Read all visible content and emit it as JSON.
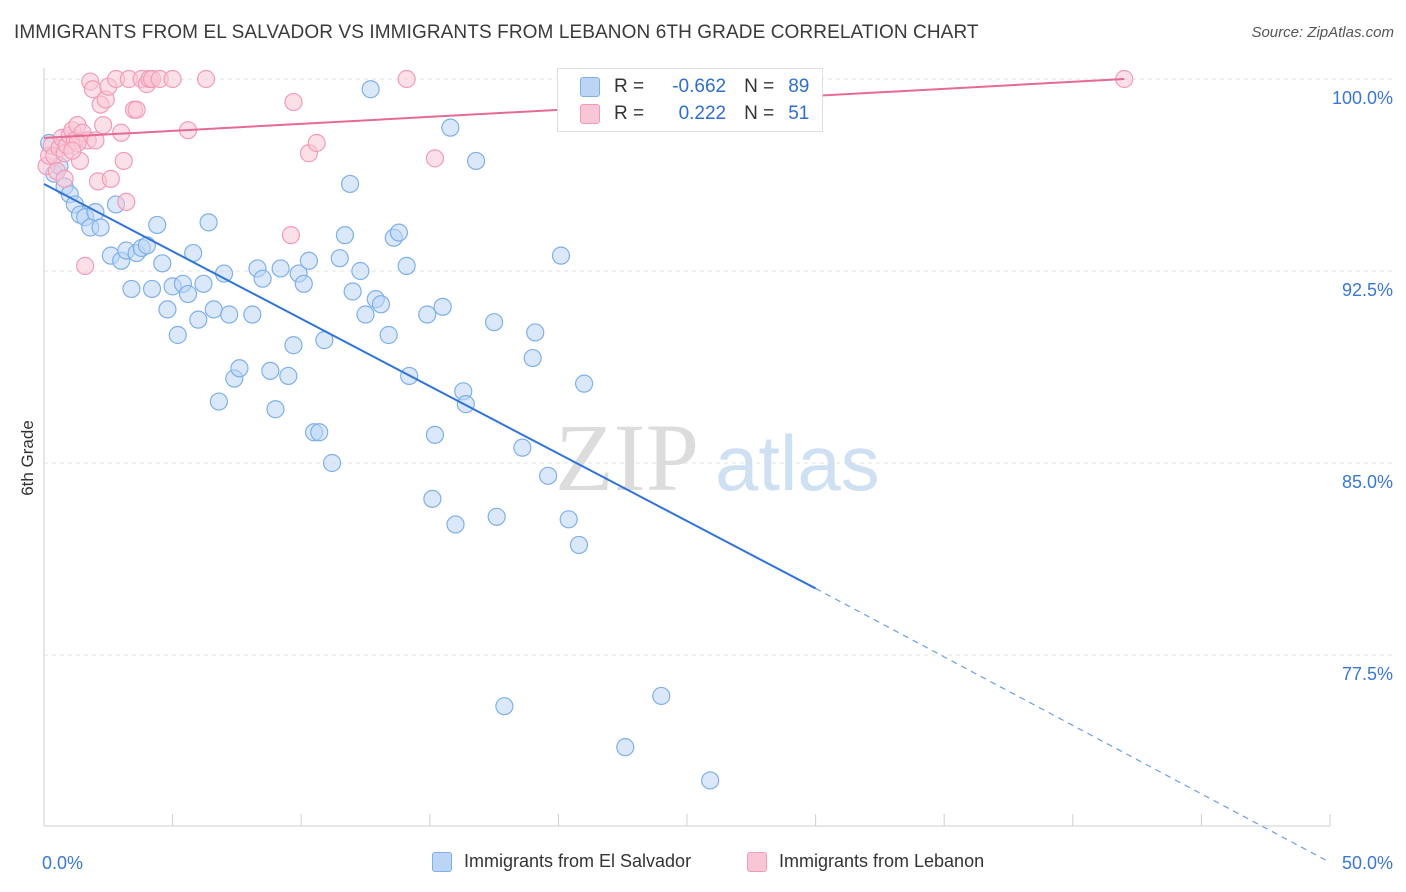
{
  "title": "IMMIGRANTS FROM EL SALVADOR VS IMMIGRANTS FROM LEBANON 6TH GRADE CORRELATION CHART",
  "source": "Source: ZipAtlas.com",
  "watermark": {
    "zip": "ZIP",
    "atlas": "atlas"
  },
  "legend": {
    "rows": [
      {
        "r_label": "R =",
        "r_value": "-0.662",
        "n_label": "N =",
        "n_value": "89",
        "color": "#7fb0e8",
        "fill": "#bcd5f5"
      },
      {
        "r_label": "R =",
        "r_value": "0.222",
        "n_label": "N =",
        "n_value": "51",
        "color": "#f29bb8",
        "fill": "#f9c6d6"
      }
    ]
  },
  "bottom_legend": [
    {
      "label": "Immigrants from El Salvador",
      "color": "#7fb0e8",
      "fill": "#bcd5f5"
    },
    {
      "label": "Immigrants from Lebanon",
      "color": "#f29bb8",
      "fill": "#f9c6d6"
    }
  ],
  "chart_data": {
    "type": "scatter",
    "title": "IMMIGRANTS FROM EL SALVADOR VS IMMIGRANTS FROM LEBANON 6TH GRADE CORRELATION CHART",
    "xlabel": "",
    "ylabel": "6th Grade",
    "xlim": [
      0,
      50
    ],
    "ylim": [
      70.5,
      101.2
    ],
    "x_tick_labels": [
      "0.0%",
      "50.0%"
    ],
    "y_ticks": [
      77.5,
      85.0,
      92.5,
      100.0
    ],
    "y_tick_labels": [
      "77.5%",
      "85.0%",
      "92.5%",
      "100.0%"
    ],
    "grid": true,
    "legend_position": "top-center",
    "series": [
      {
        "name": "Immigrants from El Salvador",
        "color": "#3b7dd8",
        "fill": "#bcd5f5",
        "trend": {
          "x0": 0,
          "y0": 95.9,
          "x1": 30,
          "y1": 80.1,
          "dashed_to_x": 50,
          "dashed_to_y": 69.4
        },
        "points": [
          [
            0.2,
            97.5
          ],
          [
            0.4,
            96.3
          ],
          [
            0.6,
            96.6
          ],
          [
            0.8,
            95.8
          ],
          [
            1.0,
            95.5
          ],
          [
            1.2,
            95.1
          ],
          [
            1.4,
            94.7
          ],
          [
            1.6,
            94.6
          ],
          [
            1.8,
            94.2
          ],
          [
            2.0,
            94.8
          ],
          [
            2.2,
            94.2
          ],
          [
            2.6,
            93.1
          ],
          [
            2.8,
            95.1
          ],
          [
            3.0,
            92.9
          ],
          [
            3.2,
            93.3
          ],
          [
            3.4,
            91.8
          ],
          [
            3.6,
            93.2
          ],
          [
            3.8,
            93.4
          ],
          [
            4.0,
            93.5
          ],
          [
            4.2,
            91.8
          ],
          [
            4.4,
            94.3
          ],
          [
            4.6,
            92.8
          ],
          [
            4.8,
            91.0
          ],
          [
            5.0,
            91.9
          ],
          [
            5.2,
            90.0
          ],
          [
            5.4,
            92.0
          ],
          [
            5.6,
            91.6
          ],
          [
            5.8,
            93.2
          ],
          [
            6.0,
            90.6
          ],
          [
            6.2,
            92.0
          ],
          [
            6.4,
            94.4
          ],
          [
            6.6,
            91.0
          ],
          [
            6.8,
            87.4
          ],
          [
            7.0,
            92.4
          ],
          [
            7.2,
            90.8
          ],
          [
            7.4,
            88.3
          ],
          [
            7.6,
            88.7
          ],
          [
            8.1,
            90.8
          ],
          [
            8.3,
            92.6
          ],
          [
            8.5,
            92.2
          ],
          [
            8.8,
            88.6
          ],
          [
            9.0,
            87.1
          ],
          [
            9.2,
            92.6
          ],
          [
            9.5,
            88.4
          ],
          [
            9.7,
            89.6
          ],
          [
            9.9,
            92.4
          ],
          [
            10.1,
            92.0
          ],
          [
            10.3,
            92.9
          ],
          [
            10.5,
            86.2
          ],
          [
            10.7,
            86.2
          ],
          [
            10.9,
            89.8
          ],
          [
            11.2,
            85.0
          ],
          [
            11.5,
            93.0
          ],
          [
            11.7,
            93.9
          ],
          [
            11.9,
            95.9
          ],
          [
            12.0,
            91.7
          ],
          [
            12.3,
            92.5
          ],
          [
            12.5,
            90.8
          ],
          [
            12.7,
            99.6
          ],
          [
            12.9,
            91.4
          ],
          [
            13.1,
            91.2
          ],
          [
            13.4,
            90.0
          ],
          [
            13.6,
            93.8
          ],
          [
            13.8,
            94.0
          ],
          [
            14.1,
            92.7
          ],
          [
            14.2,
            88.4
          ],
          [
            14.9,
            90.8
          ],
          [
            15.1,
            83.6
          ],
          [
            15.2,
            86.1
          ],
          [
            15.5,
            91.1
          ],
          [
            15.8,
            98.1
          ],
          [
            16.0,
            82.6
          ],
          [
            16.3,
            87.8
          ],
          [
            16.4,
            87.3
          ],
          [
            16.8,
            96.8
          ],
          [
            17.5,
            90.5
          ],
          [
            17.6,
            82.9
          ],
          [
            18.6,
            85.6
          ],
          [
            19.0,
            89.1
          ],
          [
            19.1,
            90.1
          ],
          [
            19.6,
            84.5
          ],
          [
            20.1,
            93.1
          ],
          [
            20.4,
            82.8
          ],
          [
            20.8,
            81.8
          ],
          [
            21.0,
            88.1
          ],
          [
            22.6,
            73.9
          ],
          [
            24.0,
            75.9
          ],
          [
            17.9,
            75.5
          ],
          [
            25.9,
            72.6
          ]
        ]
      },
      {
        "name": "Immigrants from Lebanon",
        "color": "#e06690",
        "fill": "#f9c6d6",
        "trend": {
          "x0": 0,
          "y0": 97.7,
          "x1": 42.0,
          "y1": 100.0
        },
        "points": [
          [
            0.1,
            96.6
          ],
          [
            0.2,
            97.0
          ],
          [
            0.3,
            97.4
          ],
          [
            0.4,
            97.0
          ],
          [
            0.5,
            96.4
          ],
          [
            0.6,
            97.3
          ],
          [
            0.7,
            97.7
          ],
          [
            0.8,
            97.1
          ],
          [
            0.9,
            97.4
          ],
          [
            1.0,
            97.8
          ],
          [
            1.1,
            98.0
          ],
          [
            1.2,
            97.6
          ],
          [
            1.3,
            98.2
          ],
          [
            1.4,
            96.8
          ],
          [
            1.5,
            97.9
          ],
          [
            1.6,
            92.7
          ],
          [
            1.7,
            97.6
          ],
          [
            1.8,
            99.9
          ],
          [
            1.9,
            99.6
          ],
          [
            2.0,
            97.6
          ],
          [
            2.1,
            96.0
          ],
          [
            2.2,
            99.0
          ],
          [
            2.3,
            98.2
          ],
          [
            2.4,
            99.2
          ],
          [
            2.5,
            99.7
          ],
          [
            2.6,
            96.1
          ],
          [
            2.8,
            100.0
          ],
          [
            3.0,
            97.9
          ],
          [
            3.1,
            96.8
          ],
          [
            3.2,
            95.2
          ],
          [
            3.3,
            100.0
          ],
          [
            3.5,
            98.8
          ],
          [
            3.6,
            98.8
          ],
          [
            3.8,
            100.0
          ],
          [
            4.0,
            99.8
          ],
          [
            4.1,
            100.0
          ],
          [
            4.2,
            100.0
          ],
          [
            4.5,
            100.0
          ],
          [
            5.0,
            100.0
          ],
          [
            5.6,
            98.0
          ],
          [
            6.3,
            100.0
          ],
          [
            9.6,
            93.9
          ],
          [
            9.7,
            99.1
          ],
          [
            10.3,
            97.1
          ],
          [
            10.6,
            97.5
          ],
          [
            14.1,
            100.0
          ],
          [
            15.2,
            96.9
          ],
          [
            42.0,
            100.0
          ],
          [
            1.3,
            97.5
          ],
          [
            0.8,
            96.1
          ],
          [
            1.1,
            97.2
          ]
        ]
      }
    ]
  }
}
